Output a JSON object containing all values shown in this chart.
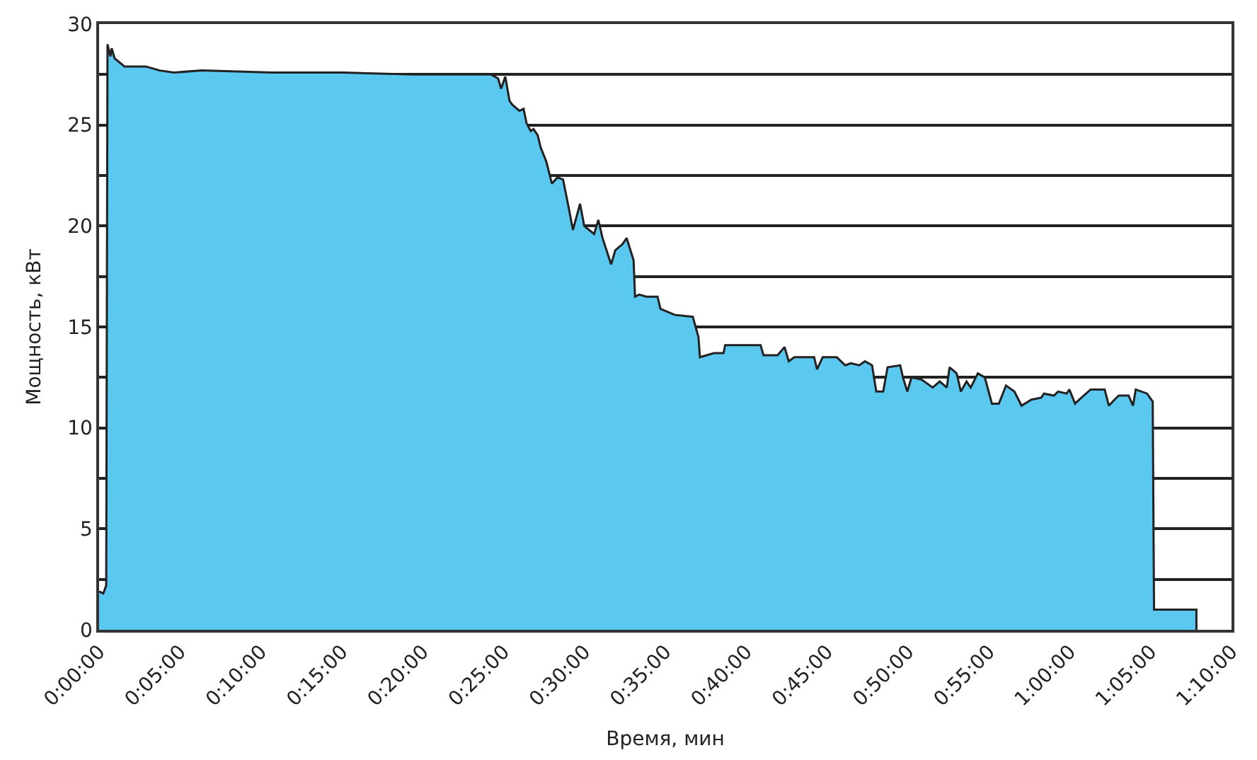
{
  "chart_data": {
    "type": "area",
    "xlabel": "Время, мин",
    "ylabel": "Мощность, кВт",
    "xlim": [
      0,
      70
    ],
    "xticks": [
      {
        "value": 0,
        "label": "0:00:00"
      },
      {
        "value": 5,
        "label": "0:05:00"
      },
      {
        "value": 10,
        "label": "0:10:00"
      },
      {
        "value": 15,
        "label": "0:15:00"
      },
      {
        "value": 20,
        "label": "0:20:00"
      },
      {
        "value": 25,
        "label": "0:25:00"
      },
      {
        "value": 30,
        "label": "0:30:00"
      },
      {
        "value": 35,
        "label": "0:35:00"
      },
      {
        "value": 40,
        "label": "0:40:00"
      },
      {
        "value": 45,
        "label": "0:45:00"
      },
      {
        "value": 50,
        "label": "0:50:00"
      },
      {
        "value": 55,
        "label": "0:55:00"
      },
      {
        "value": 60,
        "label": "1:00:00"
      },
      {
        "value": 65,
        "label": "1:05:00"
      },
      {
        "value": 70,
        "label": "1:10:00"
      }
    ],
    "ylim": [
      0,
      30
    ],
    "yticks": [
      0,
      {
        "value": 2.5,
        "label": null
      },
      5,
      {
        "value": 7.5,
        "label": null
      },
      10,
      {
        "value": 12.5,
        "label": null
      },
      15,
      {
        "value": 17.5,
        "label": null
      },
      20,
      {
        "value": 22.5,
        "label": null
      },
      25,
      {
        "value": 27.5,
        "label": null
      },
      30
    ],
    "grid": "y",
    "marker": "none",
    "line_style": "solid",
    "series": [
      {
        "color": "#5bc8f0",
        "x": [
          0,
          0.26,
          0.44,
          0.52,
          0.7,
          0.78,
          0.96,
          1.57,
          2.88,
          3.75,
          4.62,
          6.36,
          10.72,
          15.08,
          19.44,
          24.24,
          24.67,
          24.85,
          25.11,
          25.37,
          25.55,
          25.99,
          26.24,
          26.42,
          26.68,
          26.85,
          27.11,
          27.29,
          27.64,
          27.99,
          28.33,
          28.68,
          29.03,
          29.29,
          29.73,
          29.99,
          30.6,
          30.86,
          31.12,
          31.65,
          31.91,
          32.35,
          32.61,
          33.04,
          33.13,
          33.39,
          33.83,
          34.52,
          34.7,
          35.57,
          36.7,
          37.05,
          37.14,
          38.01,
          38.6,
          38.7,
          40.89,
          41.07,
          41.24,
          41.94,
          42.37,
          42.63,
          42.98,
          43.85,
          44.2,
          44.38,
          44.73,
          45.6,
          46.12,
          46.47,
          46.99,
          47.34,
          47.78,
          48.04,
          48.47,
          48.74,
          49.52,
          49.69,
          49.96,
          50.22,
          50.83,
          51.18,
          51.53,
          51.96,
          52.4,
          52.57,
          53.01,
          53.27,
          53.62,
          53.88,
          54.32,
          54.75,
          55.19,
          55.62,
          56.06,
          56.58,
          57.02,
          57.63,
          58.24,
          58.41,
          59.02,
          59.28,
          59.81,
          59.98,
          60.33,
          60.59,
          61.29,
          62.16,
          62.42,
          62.77,
          63.03,
          63.64,
          63.91,
          64.08,
          64.78,
          65.13,
          65.21,
          67.83,
          67.83
        ],
        "values": [
          1.9,
          1.8,
          2.2,
          29.0,
          28.4,
          28.8,
          28.3,
          27.9,
          27.9,
          27.7,
          27.6,
          27.7,
          27.6,
          27.6,
          27.5,
          27.5,
          27.3,
          26.8,
          27.4,
          26.2,
          26.0,
          25.7,
          25.8,
          25.1,
          24.7,
          24.8,
          24.5,
          23.9,
          23.2,
          22.1,
          22.4,
          22.3,
          20.9,
          19.8,
          21.1,
          20.0,
          19.6,
          20.3,
          19.4,
          18.1,
          18.8,
          19.1,
          19.4,
          18.3,
          16.5,
          16.6,
          16.5,
          16.5,
          15.9,
          15.6,
          15.5,
          14.5,
          13.5,
          13.7,
          13.7,
          14.1,
          14.1,
          13.6,
          13.6,
          13.6,
          14.0,
          13.3,
          13.5,
          13.5,
          13.5,
          12.9,
          13.5,
          13.5,
          13.1,
          13.2,
          13.1,
          13.3,
          13.1,
          11.8,
          11.8,
          13.0,
          13.1,
          12.5,
          11.8,
          12.5,
          12.4,
          12.2,
          12.0,
          12.3,
          12.0,
          13.0,
          12.7,
          11.8,
          12.3,
          12.0,
          12.7,
          12.5,
          11.2,
          11.2,
          12.1,
          11.8,
          11.1,
          11.4,
          11.5,
          11.7,
          11.6,
          11.8,
          11.7,
          11.9,
          11.2,
          11.4,
          11.9,
          11.9,
          11.1,
          11.4,
          11.6,
          11.6,
          11.1,
          11.9,
          11.7,
          11.3,
          1.0,
          1.0,
          0
        ]
      }
    ]
  }
}
